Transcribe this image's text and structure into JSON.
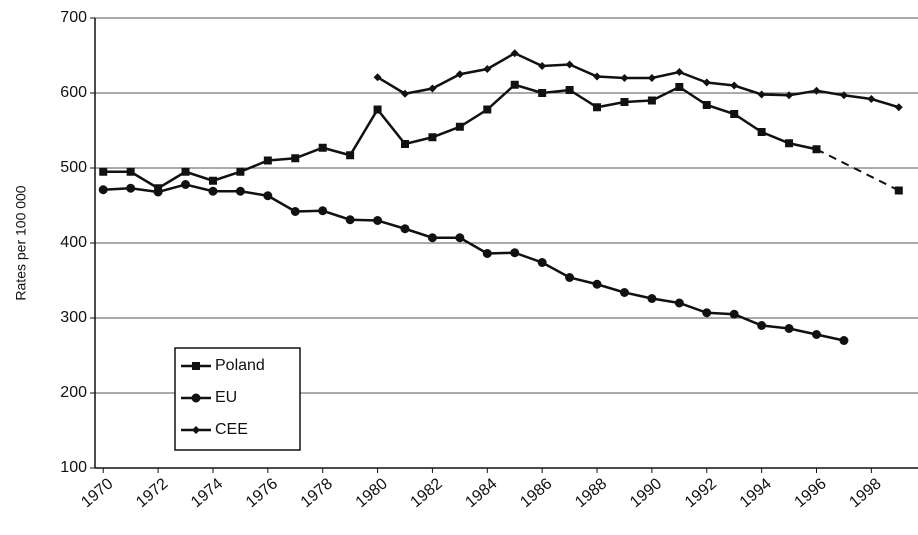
{
  "chart_data": {
    "type": "line",
    "ylabel": "Rates per 100 000",
    "x": [
      1970,
      1971,
      1972,
      1973,
      1974,
      1975,
      1976,
      1977,
      1978,
      1979,
      1980,
      1981,
      1982,
      1983,
      1984,
      1985,
      1986,
      1987,
      1988,
      1989,
      1990,
      1991,
      1992,
      1993,
      1994,
      1995,
      1996,
      1997,
      1998,
      1999
    ],
    "xlim": [
      1969.7,
      1999.7
    ],
    "xticks": [
      1970,
      1972,
      1974,
      1976,
      1978,
      1980,
      1982,
      1984,
      1986,
      1988,
      1990,
      1992,
      1994,
      1996,
      1998
    ],
    "ylim": [
      100,
      700
    ],
    "yticks": [
      100,
      200,
      300,
      400,
      500,
      600,
      700
    ],
    "grid": true,
    "legend": "lower left",
    "dashed_after_index": 26,
    "series": [
      {
        "name": "Poland",
        "color": "#111",
        "marker": "square",
        "values": [
          495,
          495,
          473,
          495,
          483,
          495,
          510,
          513,
          527,
          517,
          578,
          532,
          541,
          555,
          578,
          611,
          600,
          604,
          581,
          588,
          590,
          608,
          584,
          572,
          548,
          533,
          525,
          null,
          null,
          470
        ]
      },
      {
        "name": "EU",
        "color": "#111",
        "marker": "circle",
        "values": [
          471,
          473,
          468,
          478,
          469,
          469,
          463,
          442,
          443,
          431,
          430,
          419,
          407,
          407,
          386,
          387,
          374,
          354,
          345,
          334,
          326,
          320,
          307,
          305,
          290,
          286,
          278,
          270,
          null,
          null
        ]
      },
      {
        "name": "CEE",
        "color": "#111",
        "marker": "diamond",
        "values": [
          null,
          null,
          null,
          null,
          null,
          null,
          null,
          null,
          null,
          null,
          621,
          599,
          606,
          625,
          632,
          653,
          636,
          638,
          622,
          620,
          620,
          628,
          614,
          610,
          598,
          597,
          603,
          597,
          592,
          581
        ]
      }
    ]
  }
}
